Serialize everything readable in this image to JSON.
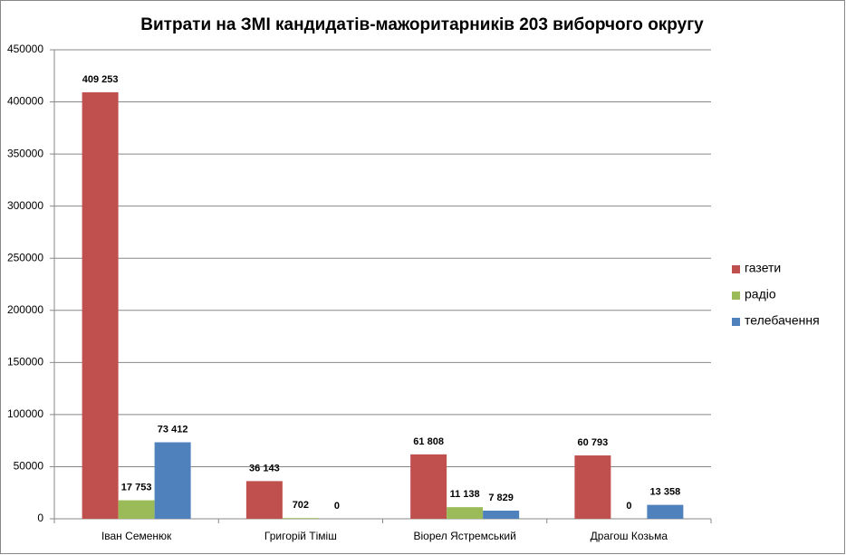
{
  "chart_data": {
    "type": "bar",
    "title": "Витрати на ЗМІ кандидатів-мажоритарників 203 виборчого округу",
    "categories": [
      "Іван Семенюк",
      "Григорій Тіміш",
      "Віорел Ястремський",
      "Драгош Козьма"
    ],
    "series": [
      {
        "name": "газети",
        "color": "#c0504d",
        "values": [
          409253,
          36143,
          61808,
          60793
        ],
        "value_labels": [
          "409 253",
          "36 143",
          "61 808",
          "60 793"
        ]
      },
      {
        "name": "радіо",
        "color": "#9bbb59",
        "values": [
          17753,
          702,
          11138,
          0
        ],
        "value_labels": [
          "17 753",
          "702",
          "11 138",
          "0"
        ]
      },
      {
        "name": "телебачення",
        "color": "#4f81bd",
        "values": [
          73412,
          0,
          7829,
          13358
        ],
        "value_labels": [
          "73 412",
          "0",
          "7 829",
          "13 358"
        ]
      }
    ],
    "ylim": [
      0,
      450000
    ],
    "yticks": [
      0,
      50000,
      100000,
      150000,
      200000,
      250000,
      300000,
      350000,
      400000,
      450000
    ],
    "grid": true,
    "legend": "right"
  }
}
